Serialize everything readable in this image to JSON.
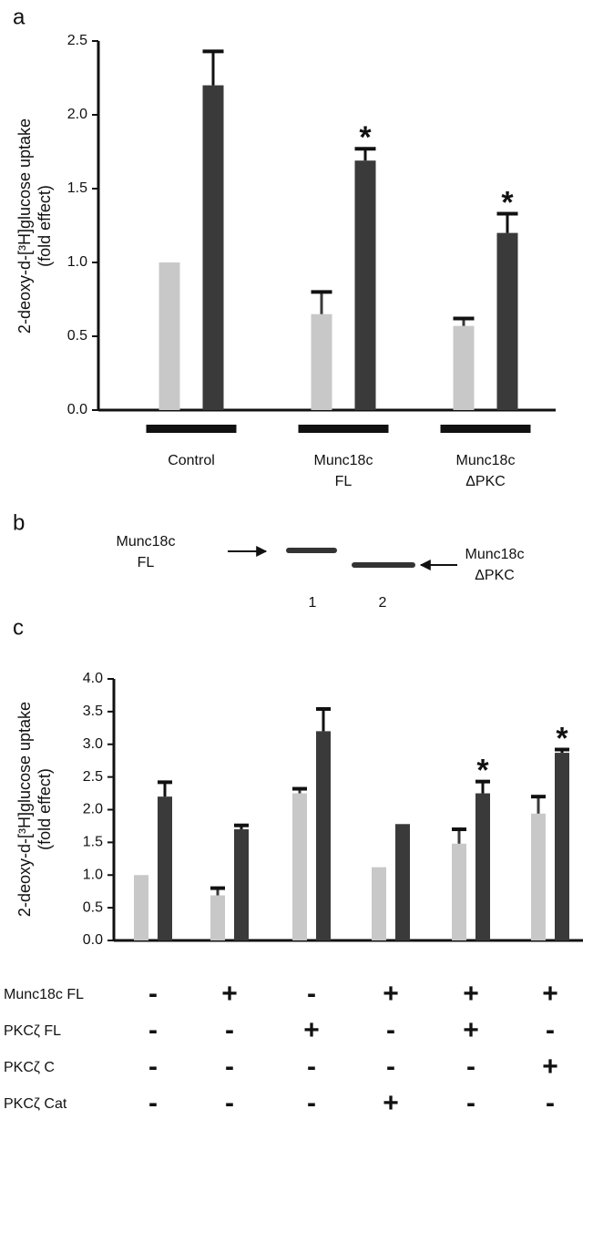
{
  "panel_labels": [
    "a",
    "b",
    "c"
  ],
  "chart_data": [
    {
      "type": "bar",
      "y_label": "2-deoxy-d-[³H]glucose uptake",
      "y_label_2": "(fold effect)",
      "categories": [
        "Control",
        "Munc18c FL",
        "Munc18c ΔPKC"
      ],
      "series": [
        {
          "color": "#c8c8c8",
          "values": [
            1.0,
            0.65,
            0.57
          ],
          "errors": [
            0,
            0.15,
            0.05
          ],
          "annotations": [
            null,
            null,
            null
          ]
        },
        {
          "color": "#3a3a3a",
          "values": [
            2.2,
            1.69,
            1.2
          ],
          "errors": [
            0.23,
            0.08,
            0.13
          ],
          "annotations": [
            null,
            "*",
            "*"
          ]
        }
      ],
      "ylim": [
        0,
        2.5
      ],
      "yticks": [
        {
          "value": 0,
          "label": "0.0"
        },
        {
          "value": 0.5,
          "label": "0.5"
        },
        {
          "value": 1,
          "label": "1.0"
        },
        {
          "value": 1.5,
          "label": "1.5"
        },
        {
          "value": 2,
          "label": "2.0"
        },
        {
          "value": 2.5,
          "label": "2.5"
        }
      ]
    },
    {
      "type": "bar",
      "y_label": "2-deoxy-d-[³H]glucose uptake",
      "y_label_2": "(fold effect)",
      "categories": [
        null,
        null,
        null,
        null,
        null,
        null
      ],
      "series": [
        {
          "color": "#c8c8c8",
          "values": [
            1.0,
            0.69,
            2.25,
            1.12,
            1.48,
            1.94
          ],
          "errors": [
            0,
            0.11,
            0.07,
            0,
            0.22,
            0.26
          ],
          "annotations": [
            null,
            null,
            null,
            null,
            null,
            null
          ]
        },
        {
          "color": "#3a3a3a",
          "values": [
            2.2,
            1.7,
            3.2,
            1.78,
            2.25,
            2.87
          ],
          "errors": [
            0.22,
            0.06,
            0.34,
            0,
            0.18,
            0.05
          ],
          "annotations": [
            null,
            null,
            null,
            null,
            "*",
            "*"
          ]
        }
      ],
      "ylim": [
        0,
        4
      ],
      "yticks": [
        {
          "value": 0,
          "label": "0.0"
        },
        {
          "value": 0.5,
          "label": "0.5"
        },
        {
          "value": 1,
          "label": "1.0"
        },
        {
          "value": 1.5,
          "label": "1.5"
        },
        {
          "value": 2,
          "label": "2.0"
        },
        {
          "value": 2.5,
          "label": "2.5"
        },
        {
          "value": 3,
          "label": "3.0"
        },
        {
          "value": 3.5,
          "label": "3.5"
        },
        {
          "value": 4,
          "label": "4.0"
        }
      ]
    }
  ],
  "blot": {
    "left_label": "Munc18c FL",
    "right_label": "Munc18c ΔPKC",
    "lanes": [
      "1",
      "2"
    ]
  },
  "conditions": [
    {
      "label": "Munc18c FL",
      "signs": [
        "-",
        "+",
        "-",
        "+",
        "+",
        "+"
      ]
    },
    {
      "label": "PKCζ FL",
      "signs": [
        "-",
        "-",
        "+",
        "-",
        "+",
        "-"
      ]
    },
    {
      "label": "PKCζ C",
      "signs": [
        "-",
        "-",
        "-",
        "-",
        "-",
        "+"
      ]
    },
    {
      "label": "PKCζ Cat",
      "signs": [
        "-",
        "-",
        "-",
        "+",
        "-",
        "-"
      ]
    }
  ]
}
